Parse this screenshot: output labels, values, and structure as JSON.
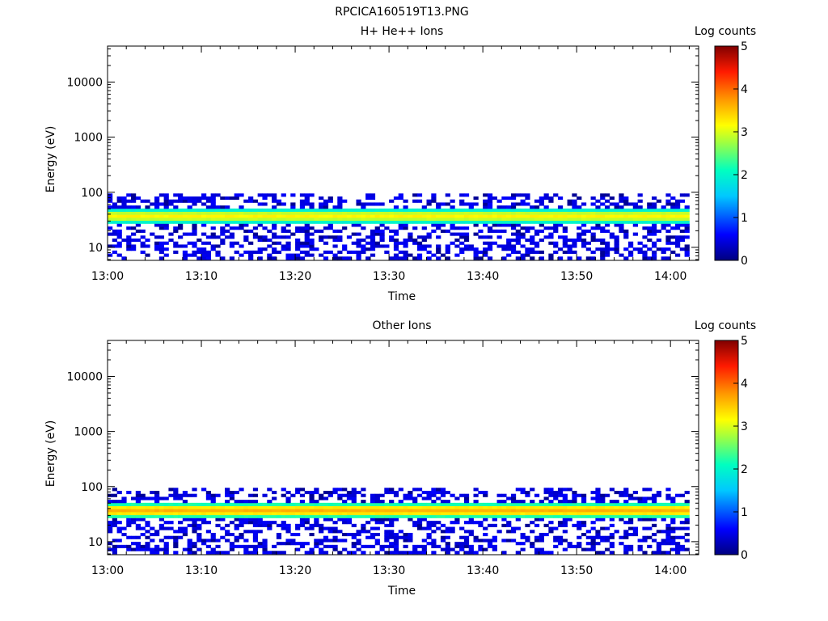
{
  "figure_title": "RPCICA160519T13.PNG",
  "chart_data": [
    {
      "type": "heatmap",
      "title": "H+ He++ Ions",
      "xlabel": "Time",
      "ylabel": "Energy (eV)",
      "x_ticks": [
        "13:00",
        "13:10",
        "13:20",
        "13:30",
        "13:40",
        "13:50",
        "14:00"
      ],
      "x_range": [
        "13:00",
        "14:03"
      ],
      "y_scale": "log",
      "y_ticks": [
        "10",
        "100",
        "1000",
        "10000"
      ],
      "y_range": [
        5.8,
        45000
      ],
      "colorbar": {
        "label": "Log counts",
        "ticks": [
          "0",
          "1",
          "2",
          "3",
          "4",
          "5"
        ],
        "range": [
          0,
          5
        ],
        "colormap": "rainbow"
      },
      "band": {
        "energy_range_eV": [
          26,
          48
        ],
        "peak_energy_eV": 37,
        "peak_log_counts": 3.2,
        "scattered_counts_energy_range_eV": [
          6,
          95
        ]
      }
    },
    {
      "type": "heatmap",
      "title": "Other Ions",
      "xlabel": "Time",
      "ylabel": "Energy (eV)",
      "x_ticks": [
        "13:00",
        "13:10",
        "13:20",
        "13:30",
        "13:40",
        "13:50",
        "14:00"
      ],
      "x_range": [
        "13:00",
        "14:03"
      ],
      "y_scale": "log",
      "y_ticks": [
        "10",
        "100",
        "1000",
        "10000"
      ],
      "y_range": [
        5.8,
        45000
      ],
      "colorbar": {
        "label": "Log counts",
        "ticks": [
          "0",
          "1",
          "2",
          "3",
          "4",
          "5"
        ],
        "range": [
          0,
          5
        ],
        "colormap": "rainbow"
      },
      "band": {
        "energy_range_eV": [
          27,
          48
        ],
        "peak_energy_eV": 37,
        "peak_log_counts": 3.6,
        "scattered_counts_energy_range_eV": [
          6,
          95
        ]
      }
    }
  ]
}
